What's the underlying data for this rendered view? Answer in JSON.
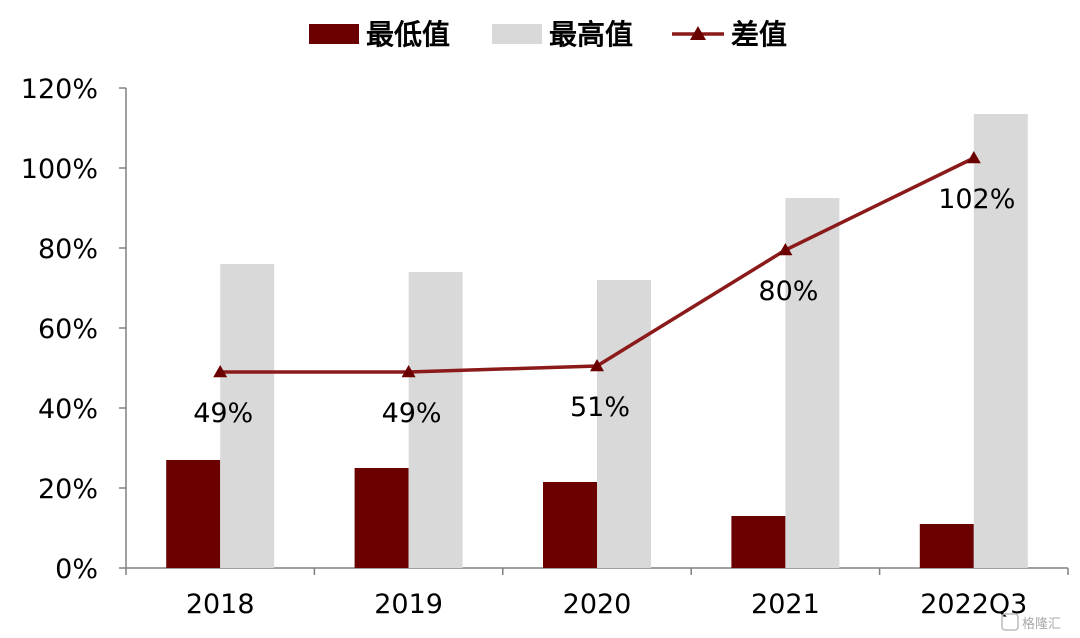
{
  "chart_data": {
    "type": "bar",
    "categories": [
      "2018",
      "2019",
      "2020",
      "2021",
      "2022Q3"
    ],
    "series": [
      {
        "name": "最低值",
        "kind": "bar",
        "color": "#6b0000",
        "values": [
          27,
          25,
          21.5,
          13,
          11
        ]
      },
      {
        "name": "最高值",
        "kind": "bar",
        "color": "#d9d9d9",
        "values": [
          76,
          74,
          72,
          92.5,
          113.5
        ]
      },
      {
        "name": "差值",
        "kind": "line",
        "marker": "triangle",
        "color": "#8b1a1a",
        "values": [
          49,
          49,
          50.5,
          79.5,
          102.5
        ],
        "labels": [
          "49%",
          "49%",
          "51%",
          "80%",
          "102%"
        ]
      }
    ],
    "yticks": [
      "0%",
      "20%",
      "40%",
      "60%",
      "80%",
      "100%",
      "120%"
    ],
    "ylim": [
      0,
      120
    ],
    "ystep": 20,
    "legend_position": "top",
    "grid": false
  },
  "watermark": "格隆汇"
}
